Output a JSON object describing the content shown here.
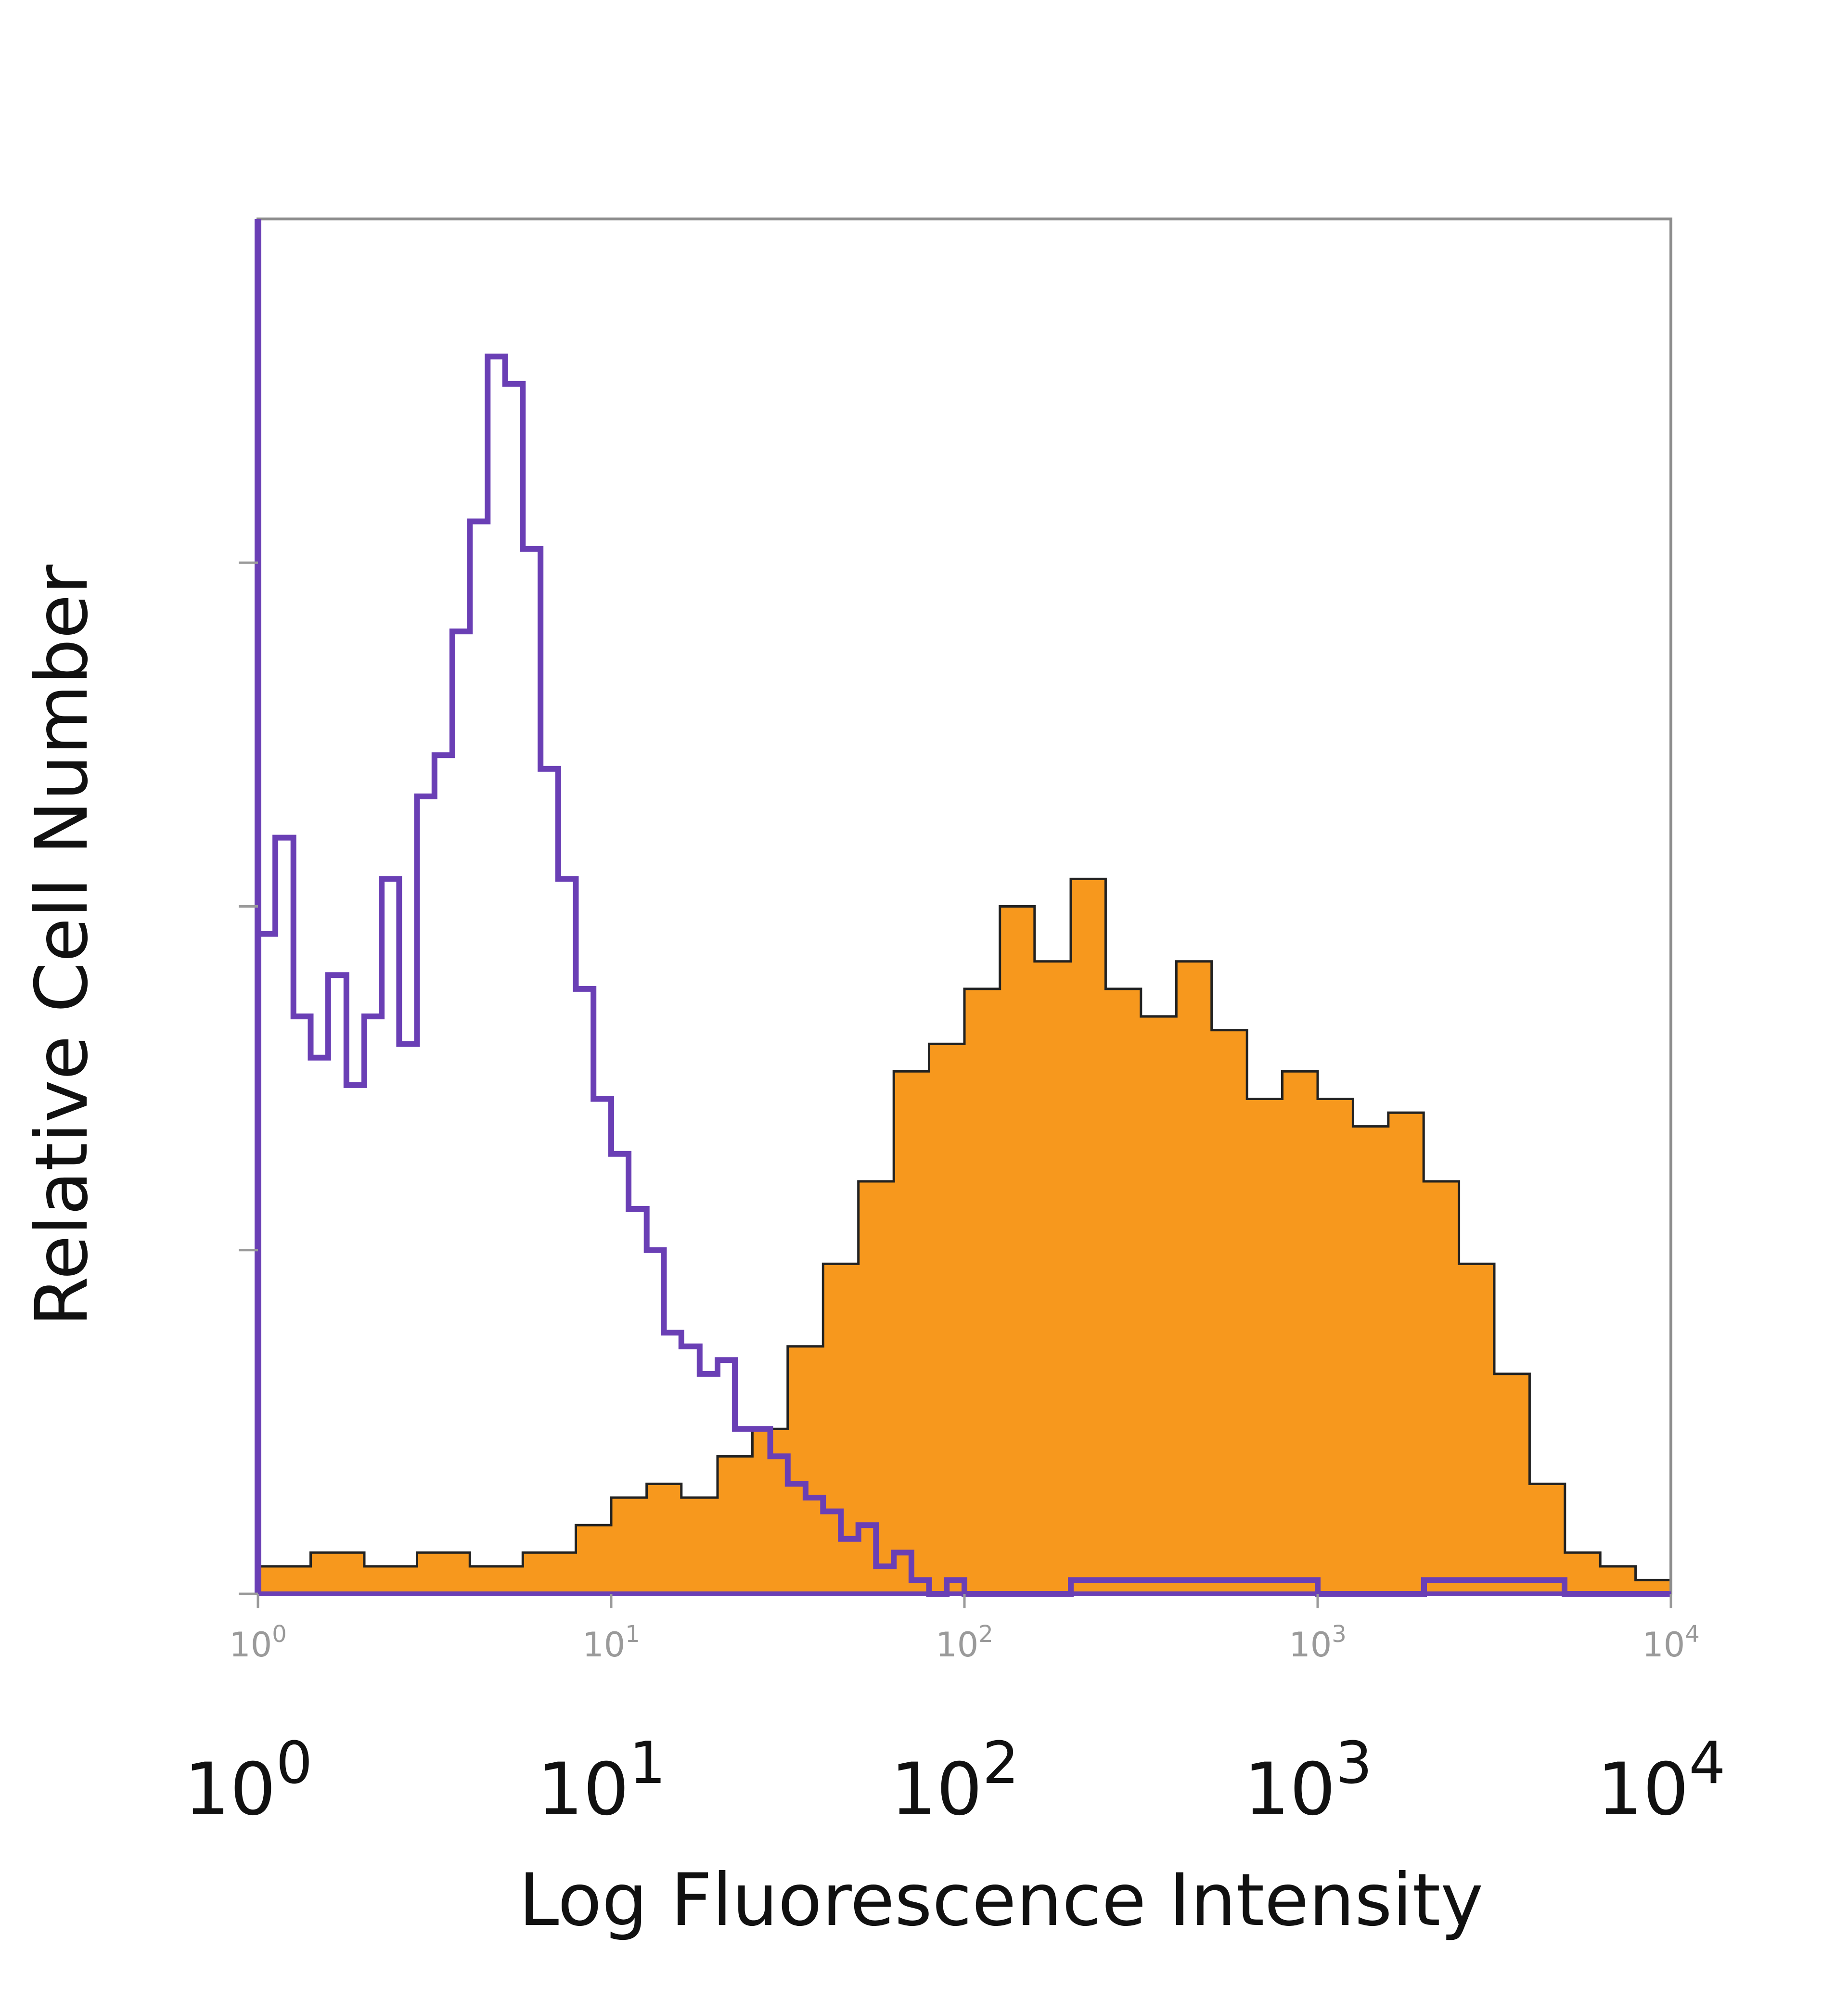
{
  "chart_data": {
    "type": "area",
    "title": "",
    "xlabel": "Log Fluorescence Intensity",
    "ylabel": "Relative Cell Number",
    "x_scale": "log",
    "xlim": [
      1,
      10000
    ],
    "ylim": [
      0,
      1
    ],
    "grid": false,
    "legend": "none",
    "x_tick_labels": [
      {
        "value": 1,
        "base": "10",
        "exp": "0"
      },
      {
        "value": 10,
        "base": "10",
        "exp": "1"
      },
      {
        "value": 100,
        "base": "10",
        "exp": "2"
      },
      {
        "value": 1000,
        "base": "10",
        "exp": "3"
      },
      {
        "value": 10000,
        "base": "10",
        "exp": "4"
      }
    ],
    "series": [
      {
        "style": "outline",
        "color": "#6a3fb5",
        "x": [
          1.0,
          1.12,
          1.26,
          1.41,
          1.58,
          1.78,
          2.0,
          2.24,
          2.51,
          2.82,
          3.16,
          3.55,
          3.98,
          4.47,
          5.01,
          5.62,
          6.31,
          7.08,
          7.94,
          8.91,
          10.0,
          11.2,
          12.6,
          14.1,
          15.8,
          17.8,
          20.0,
          22.4,
          25.1,
          28.2,
          31.6,
          35.5,
          39.8,
          44.7,
          50.1,
          56.2,
          63.1,
          70.8,
          79.4,
          89.1,
          100,
          200,
          400,
          1000,
          2000,
          5000,
          10000
        ],
        "values": [
          0.48,
          0.55,
          0.42,
          0.39,
          0.45,
          0.37,
          0.42,
          0.52,
          0.4,
          0.58,
          0.61,
          0.7,
          0.78,
          0.9,
          0.88,
          0.76,
          0.6,
          0.52,
          0.44,
          0.36,
          0.32,
          0.28,
          0.25,
          0.19,
          0.18,
          0.16,
          0.17,
          0.12,
          0.12,
          0.1,
          0.08,
          0.07,
          0.06,
          0.04,
          0.05,
          0.02,
          0.03,
          0.01,
          0.0,
          0.01,
          0.0,
          0.01,
          0.01,
          0.0,
          0.01,
          0.0,
          0.0
        ]
      },
      {
        "style": "filled",
        "color": "#f7981d",
        "edge_color": "#222222",
        "x": [
          1.0,
          1.41,
          2.0,
          2.82,
          3.98,
          5.62,
          7.94,
          10.0,
          12.6,
          15.8,
          20.0,
          25.1,
          31.6,
          39.8,
          50.1,
          63.1,
          79.4,
          100,
          126,
          158,
          200,
          251,
          316,
          398,
          501,
          631,
          794,
          1000,
          1259,
          1585,
          1995,
          2512,
          3162,
          3981,
          5012,
          6310,
          7943,
          10000
        ],
        "values": [
          0.02,
          0.03,
          0.02,
          0.03,
          0.02,
          0.03,
          0.05,
          0.07,
          0.08,
          0.07,
          0.1,
          0.12,
          0.18,
          0.24,
          0.3,
          0.38,
          0.4,
          0.44,
          0.5,
          0.46,
          0.52,
          0.44,
          0.42,
          0.46,
          0.41,
          0.36,
          0.38,
          0.36,
          0.34,
          0.35,
          0.3,
          0.24,
          0.16,
          0.08,
          0.03,
          0.02,
          0.01,
          0.0
        ]
      }
    ]
  }
}
